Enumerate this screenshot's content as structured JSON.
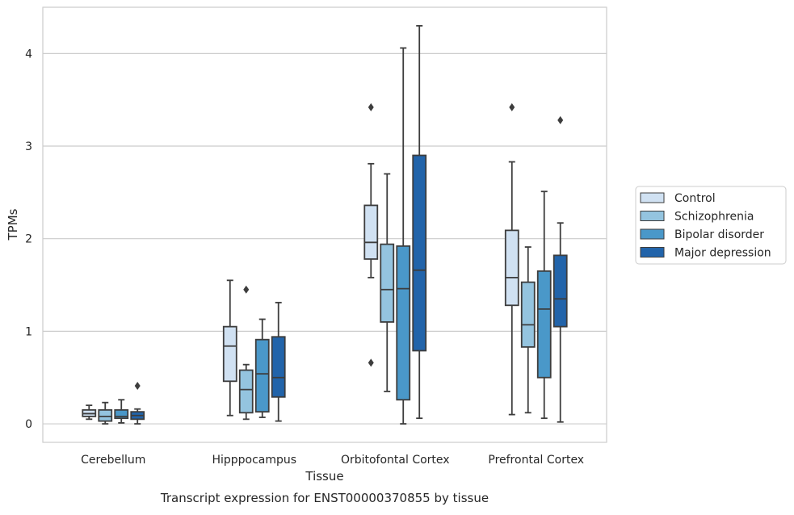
{
  "chart_data": {
    "type": "box",
    "xlabel": "Tissue",
    "ylabel": "TPMs",
    "caption": "Transcript expression for ENST00000370855 by tissue",
    "ylim": [
      -0.2,
      4.5
    ],
    "yticks": [
      "0",
      "1",
      "2",
      "3",
      "4"
    ],
    "grid": "horizontal",
    "legend_position": "right",
    "categories": [
      "Cerebellum",
      "Hipppocampus",
      "Orbitofontal Cortex",
      "Prefrontal Cortex"
    ],
    "series": [
      {
        "name": "Control",
        "color": "#d0e1f2",
        "boxes": [
          {
            "whislo": 0.05,
            "q1": 0.08,
            "med": 0.11,
            "q3": 0.15,
            "whishi": 0.2,
            "fliers": []
          },
          {
            "whislo": 0.09,
            "q1": 0.46,
            "med": 0.84,
            "q3": 1.05,
            "whishi": 1.55,
            "fliers": []
          },
          {
            "whislo": 1.58,
            "q1": 1.78,
            "med": 1.96,
            "q3": 2.36,
            "whishi": 2.81,
            "fliers": [
              3.42,
              0.66
            ]
          },
          {
            "whislo": 0.1,
            "q1": 1.28,
            "med": 1.58,
            "q3": 2.09,
            "whishi": 2.83,
            "fliers": [
              3.42
            ]
          }
        ]
      },
      {
        "name": "Schizophrenia",
        "color": "#94c4df",
        "boxes": [
          {
            "whislo": 0.0,
            "q1": 0.03,
            "med": 0.08,
            "q3": 0.15,
            "whishi": 0.23,
            "fliers": []
          },
          {
            "whislo": 0.05,
            "q1": 0.12,
            "med": 0.37,
            "q3": 0.58,
            "whishi": 0.64,
            "fliers": [
              1.45
            ]
          },
          {
            "whislo": 0.35,
            "q1": 1.1,
            "med": 1.45,
            "q3": 1.94,
            "whishi": 2.7,
            "fliers": []
          },
          {
            "whislo": 0.12,
            "q1": 0.83,
            "med": 1.07,
            "q3": 1.53,
            "whishi": 1.91,
            "fliers": []
          }
        ]
      },
      {
        "name": "Bipolar disorder",
        "color": "#4a98c9",
        "boxes": [
          {
            "whislo": 0.01,
            "q1": 0.06,
            "med": 0.08,
            "q3": 0.15,
            "whishi": 0.26,
            "fliers": []
          },
          {
            "whislo": 0.07,
            "q1": 0.13,
            "med": 0.54,
            "q3": 0.91,
            "whishi": 1.13,
            "fliers": []
          },
          {
            "whislo": 0.0,
            "q1": 0.26,
            "med": 1.46,
            "q3": 1.92,
            "whishi": 4.06,
            "fliers": []
          },
          {
            "whislo": 0.06,
            "q1": 0.5,
            "med": 1.24,
            "q3": 1.65,
            "whishi": 2.51,
            "fliers": []
          }
        ]
      },
      {
        "name": "Major depression",
        "color": "#2264aa",
        "boxes": [
          {
            "whislo": 0.0,
            "q1": 0.05,
            "med": 0.09,
            "q3": 0.13,
            "whishi": 0.16,
            "fliers": [
              0.41
            ]
          },
          {
            "whislo": 0.03,
            "q1": 0.29,
            "med": 0.5,
            "q3": 0.94,
            "whishi": 1.31,
            "fliers": []
          },
          {
            "whislo": 0.06,
            "q1": 0.79,
            "med": 1.66,
            "q3": 2.9,
            "whishi": 4.3,
            "fliers": []
          },
          {
            "whislo": 0.02,
            "q1": 1.05,
            "med": 1.35,
            "q3": 1.82,
            "whishi": 2.17,
            "fliers": [
              3.28
            ]
          }
        ]
      }
    ]
  }
}
